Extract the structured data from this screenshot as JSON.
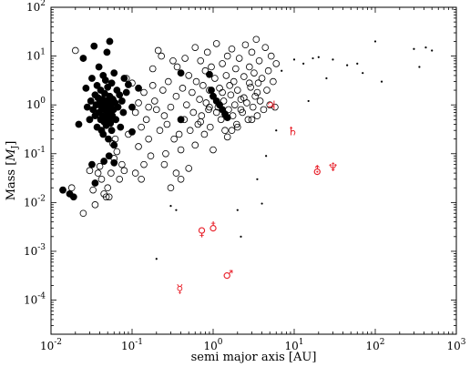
{
  "chart_data": {
    "type": "scatter",
    "title": "",
    "xlabel": "semi major axis [AU]",
    "ylabel": "Mass [M_J]",
    "ylabel_main": "Mass [",
    "ylabel_unit": "M",
    "ylabel_sub": "J",
    "ylabel_close": "]",
    "xscale": "log",
    "yscale": "log",
    "xlim": [
      0.01,
      1000
    ],
    "ylim": [
      2e-05,
      100
    ],
    "x_ticks": [
      {
        "value": 0.01,
        "base": "10",
        "exp": "-2"
      },
      {
        "value": 0.1,
        "base": "10",
        "exp": "-1"
      },
      {
        "value": 1,
        "base": "10",
        "exp": "0"
      },
      {
        "value": 10,
        "base": "10",
        "exp": "1"
      },
      {
        "value": 100,
        "base": "10",
        "exp": "2"
      },
      {
        "value": 1000,
        "base": "10",
        "exp": "3"
      }
    ],
    "y_ticks": [
      {
        "value": 0.0001,
        "base": "10",
        "exp": "-4"
      },
      {
        "value": 0.001,
        "base": "10",
        "exp": "-3"
      },
      {
        "value": 0.01,
        "base": "10",
        "exp": "-2"
      },
      {
        "value": 0.1,
        "base": "10",
        "exp": "-1"
      },
      {
        "value": 1,
        "base": "10",
        "exp": "0"
      },
      {
        "value": 10,
        "base": "10",
        "exp": "1"
      },
      {
        "value": 100,
        "base": "10",
        "exp": "2"
      }
    ],
    "grid": false,
    "legend": "none",
    "colors": {
      "points": "#000000",
      "solar_system": "#e8202a"
    },
    "series": [
      {
        "marker": "filled-circle",
        "points": [
          [
            0.014,
            0.018
          ],
          [
            0.017,
            0.015
          ],
          [
            0.019,
            0.013
          ],
          [
            0.022,
            0.4
          ],
          [
            0.025,
            9
          ],
          [
            0.027,
            2.2
          ],
          [
            0.028,
            0.9
          ],
          [
            0.03,
            0.5
          ],
          [
            0.031,
            1.2
          ],
          [
            0.032,
            3.5
          ],
          [
            0.033,
            0.8
          ],
          [
            0.034,
            16
          ],
          [
            0.035,
            1.6
          ],
          [
            0.035,
            0.6
          ],
          [
            0.036,
            1.0
          ],
          [
            0.037,
            2.5
          ],
          [
            0.037,
            0.35
          ],
          [
            0.038,
            1.4
          ],
          [
            0.039,
            0.7
          ],
          [
            0.039,
            6
          ],
          [
            0.04,
            1.1
          ],
          [
            0.041,
            0.5
          ],
          [
            0.041,
            2.0
          ],
          [
            0.042,
            0.9
          ],
          [
            0.042,
            0.3
          ],
          [
            0.043,
            1.3
          ],
          [
            0.043,
            0.6
          ],
          [
            0.044,
            4
          ],
          [
            0.044,
            0.25
          ],
          [
            0.045,
            1.0
          ],
          [
            0.045,
            0.45
          ],
          [
            0.046,
            1.7
          ],
          [
            0.046,
            0.8
          ],
          [
            0.047,
            0.55
          ],
          [
            0.047,
            3.2
          ],
          [
            0.048,
            1.2
          ],
          [
            0.048,
            0.38
          ],
          [
            0.049,
            0.9
          ],
          [
            0.049,
            12
          ],
          [
            0.05,
            0.65
          ],
          [
            0.05,
            2.3
          ],
          [
            0.051,
            0.2
          ],
          [
            0.051,
            1.1
          ],
          [
            0.052,
            0.5
          ],
          [
            0.052,
            0.85
          ],
          [
            0.053,
            1.5
          ],
          [
            0.053,
            20
          ],
          [
            0.054,
            0.7
          ],
          [
            0.054,
            0.42
          ],
          [
            0.055,
            1.0
          ],
          [
            0.056,
            2.8
          ],
          [
            0.056,
            0.3
          ],
          [
            0.057,
            0.6
          ],
          [
            0.058,
            1.3
          ],
          [
            0.059,
            0.8
          ],
          [
            0.06,
            0.15
          ],
          [
            0.06,
            4.5
          ],
          [
            0.062,
            1.1
          ],
          [
            0.063,
            0.5
          ],
          [
            0.065,
            2.0
          ],
          [
            0.067,
            0.9
          ],
          [
            0.07,
            1.6
          ],
          [
            0.072,
            0.35
          ],
          [
            0.075,
            1.2
          ],
          [
            0.078,
            0.7
          ],
          [
            0.08,
            3.5
          ],
          [
            0.085,
            1.8
          ],
          [
            0.09,
            2.6
          ],
          [
            0.1,
            0.9
          ],
          [
            0.1,
            0.28
          ],
          [
            0.12,
            2.2
          ],
          [
            0.045,
            0.07
          ],
          [
            0.052,
            0.09
          ],
          [
            0.06,
            0.065
          ],
          [
            0.4,
            0.5
          ],
          [
            0.4,
            4.5
          ],
          [
            0.9,
            4.2
          ],
          [
            1.0,
            1.5
          ],
          [
            1.1,
            1.2
          ],
          [
            1.2,
            1.0
          ],
          [
            1.3,
            0.8
          ],
          [
            1.4,
            0.65
          ],
          [
            0.95,
            2.0
          ],
          [
            1.5,
            0.55
          ],
          [
            0.032,
            0.06
          ],
          [
            0.035,
            0.025
          ]
        ]
      },
      {
        "marker": "open-circle",
        "points": [
          [
            0.018,
            0.02
          ],
          [
            0.02,
            13
          ],
          [
            0.025,
            0.006
          ],
          [
            0.03,
            0.045
          ],
          [
            0.033,
            0.018
          ],
          [
            0.035,
            0.009
          ],
          [
            0.038,
            0.04
          ],
          [
            0.04,
            0.055
          ],
          [
            0.042,
            0.03
          ],
          [
            0.045,
            0.015
          ],
          [
            0.048,
            0.013
          ],
          [
            0.05,
            0.02
          ],
          [
            0.052,
            0.013
          ],
          [
            0.055,
            0.04
          ],
          [
            0.058,
            0.16
          ],
          [
            0.06,
            0.08
          ],
          [
            0.062,
            0.2
          ],
          [
            0.065,
            0.11
          ],
          [
            0.07,
            0.03
          ],
          [
            0.075,
            0.06
          ],
          [
            0.08,
            0.045
          ],
          [
            0.085,
            3.5
          ],
          [
            0.09,
            0.25
          ],
          [
            0.1,
            2.8
          ],
          [
            0.11,
            0.04
          ],
          [
            0.12,
            0.14
          ],
          [
            0.13,
            0.03
          ],
          [
            0.14,
            0.06
          ],
          [
            0.15,
            0.5
          ],
          [
            0.16,
            0.2
          ],
          [
            0.17,
            0.09
          ],
          [
            0.18,
            5.5
          ],
          [
            0.19,
            1.2
          ],
          [
            0.2,
            0.8
          ],
          [
            0.21,
            13
          ],
          [
            0.22,
            0.3
          ],
          [
            0.23,
            10
          ],
          [
            0.24,
            2
          ],
          [
            0.25,
            0.6
          ],
          [
            0.26,
            0.1
          ],
          [
            0.27,
            0.4
          ],
          [
            0.28,
            3
          ],
          [
            0.3,
            0.9
          ],
          [
            0.32,
            8
          ],
          [
            0.33,
            0.2
          ],
          [
            0.35,
            1.5
          ],
          [
            0.36,
            6
          ],
          [
            0.38,
            0.25
          ],
          [
            0.4,
            0.12
          ],
          [
            0.42,
            2.2
          ],
          [
            0.44,
            0.5
          ],
          [
            0.45,
            9
          ],
          [
            0.47,
            1
          ],
          [
            0.5,
            4
          ],
          [
            0.52,
            0.3
          ],
          [
            0.55,
            1.8
          ],
          [
            0.57,
            0.7
          ],
          [
            0.6,
            15
          ],
          [
            0.62,
            3
          ],
          [
            0.65,
            0.4
          ],
          [
            0.68,
            1.3
          ],
          [
            0.7,
            8
          ],
          [
            0.72,
            0.6
          ],
          [
            0.75,
            2.5
          ],
          [
            0.78,
            0.25
          ],
          [
            0.8,
            5
          ],
          [
            0.82,
            1.1
          ],
          [
            0.85,
            12
          ],
          [
            0.88,
            0.8
          ],
          [
            0.9,
            2
          ],
          [
            0.92,
            0.35
          ],
          [
            0.95,
            6
          ],
          [
            1.0,
            1.5
          ],
          [
            1.0,
            0.12
          ],
          [
            1.05,
            3.5
          ],
          [
            1.1,
            18
          ],
          [
            1.15,
            0.9
          ],
          [
            1.2,
            2.2
          ],
          [
            1.25,
            0.5
          ],
          [
            1.3,
            7
          ],
          [
            1.35,
            1.2
          ],
          [
            1.4,
            0.3
          ],
          [
            1.45,
            4
          ],
          [
            1.5,
            10
          ],
          [
            1.55,
            0.8
          ],
          [
            1.6,
            2.5
          ],
          [
            1.65,
            1.6
          ],
          [
            1.7,
            14
          ],
          [
            1.75,
            0.6
          ],
          [
            1.8,
            3
          ],
          [
            1.85,
            1.0
          ],
          [
            1.9,
            5.5
          ],
          [
            1.95,
            0.4
          ],
          [
            2.0,
            2
          ],
          [
            2.1,
            9
          ],
          [
            2.2,
            1.3
          ],
          [
            2.3,
            0.7
          ],
          [
            2.4,
            3.8
          ],
          [
            2.5,
            17
          ],
          [
            2.6,
            1.1
          ],
          [
            2.7,
            0.5
          ],
          [
            2.8,
            6
          ],
          [
            2.9,
            2.3
          ],
          [
            3.0,
            12
          ],
          [
            3.1,
            0.9
          ],
          [
            3.2,
            4.5
          ],
          [
            3.3,
            1.5
          ],
          [
            3.4,
            22
          ],
          [
            3.5,
            0.6
          ],
          [
            3.6,
            2.8
          ],
          [
            3.7,
            8
          ],
          [
            3.8,
            1.2
          ],
          [
            4.0,
            3.5
          ],
          [
            4.2,
            0.8
          ],
          [
            4.4,
            15
          ],
          [
            4.6,
            2
          ],
          [
            4.8,
            5
          ],
          [
            5.0,
            1.0
          ],
          [
            5.2,
            10
          ],
          [
            5.5,
            3
          ],
          [
            5.8,
            0.9
          ],
          [
            6.0,
            7
          ],
          [
            3.0,
            0.5
          ],
          [
            2.0,
            0.35
          ],
          [
            1.5,
            0.22
          ],
          [
            0.6,
            0.15
          ],
          [
            0.5,
            0.05
          ],
          [
            0.4,
            0.03
          ],
          [
            0.3,
            0.02
          ],
          [
            0.25,
            0.06
          ],
          [
            0.35,
            0.04
          ],
          [
            1.7,
            0.3
          ],
          [
            2.2,
            0.8
          ],
          [
            0.7,
            0.45
          ],
          [
            1.1,
            0.7
          ],
          [
            0.9,
            0.9
          ],
          [
            3.5,
            1.8
          ],
          [
            2.8,
            2.8
          ],
          [
            1.3,
            1.8
          ],
          [
            2.4,
            1.4
          ],
          [
            0.12,
            1.1
          ],
          [
            0.13,
            0.35
          ],
          [
            0.11,
            0.7
          ],
          [
            0.14,
            1.8
          ],
          [
            0.16,
            0.9
          ],
          [
            0.18,
            2.5
          ]
        ]
      },
      {
        "marker": "dot",
        "points": [
          [
            0.2,
            0.0007
          ],
          [
            0.3,
            0.0085
          ],
          [
            0.35,
            0.007
          ],
          [
            2,
            0.007
          ],
          [
            2.2,
            0.002
          ],
          [
            4,
            0.0095
          ],
          [
            3.5,
            0.03
          ],
          [
            4.5,
            0.09
          ],
          [
            6,
            0.3
          ],
          [
            7,
            5
          ],
          [
            10,
            8.5
          ],
          [
            13,
            7
          ],
          [
            15,
            1.2
          ],
          [
            17,
            9
          ],
          [
            20,
            9.5
          ],
          [
            25,
            3.5
          ],
          [
            30,
            8.5
          ],
          [
            45,
            6.5
          ],
          [
            60,
            7
          ],
          [
            70,
            4.5
          ],
          [
            100,
            20
          ],
          [
            120,
            3
          ],
          [
            300,
            14
          ],
          [
            350,
            6
          ],
          [
            420,
            15
          ],
          [
            500,
            13
          ]
        ]
      }
    ],
    "solar_system": [
      {
        "symbol": "☿",
        "a": 0.387,
        "m": 0.000174
      },
      {
        "symbol": "♀",
        "a": 0.723,
        "m": 0.00256
      },
      {
        "symbol": "♁",
        "a": 1.0,
        "m": 0.00315
      },
      {
        "symbol": "♂",
        "a": 1.524,
        "m": 0.000338
      },
      {
        "symbol": "♃",
        "a": 5.2,
        "m": 1.0
      },
      {
        "symbol": "♄",
        "a": 9.58,
        "m": 0.299
      },
      {
        "symbol": "⛢",
        "a": 19.2,
        "m": 0.0457
      },
      {
        "symbol": "♆",
        "a": 30.1,
        "m": 0.054
      }
    ]
  }
}
